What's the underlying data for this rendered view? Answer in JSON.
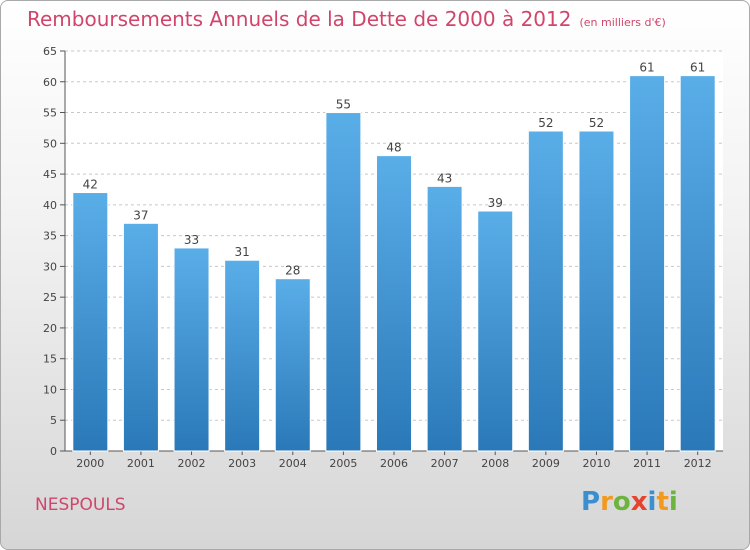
{
  "title": "Remboursements Annuels de la Dette de 2000 à 2012",
  "unit": "(en milliers d'€)",
  "town": "NESPOULS",
  "logo": {
    "letters": [
      "P",
      "r",
      "o",
      "x",
      "i",
      "t",
      "i"
    ],
    "colors": [
      "#3a8fd0",
      "#f29a1f",
      "#6cb33f",
      "#e5432d",
      "#3a8fd0",
      "#f29a1f",
      "#6cb33f"
    ]
  },
  "colors": {
    "bar_top": "#5aaee8",
    "bar_bottom": "#2a78b8",
    "title": "#d1456b"
  },
  "chart_data": {
    "type": "bar",
    "categories": [
      "2000",
      "2001",
      "2002",
      "2003",
      "2004",
      "2005",
      "2006",
      "2007",
      "2008",
      "2009",
      "2010",
      "2011",
      "2012"
    ],
    "values": [
      42,
      37,
      33,
      31,
      28,
      55,
      48,
      43,
      39,
      52,
      52,
      61,
      61
    ],
    "ylim": [
      0,
      65
    ],
    "yticks": [
      0,
      5,
      10,
      15,
      20,
      25,
      30,
      35,
      40,
      45,
      50,
      55,
      60,
      65
    ],
    "grid": true
  }
}
